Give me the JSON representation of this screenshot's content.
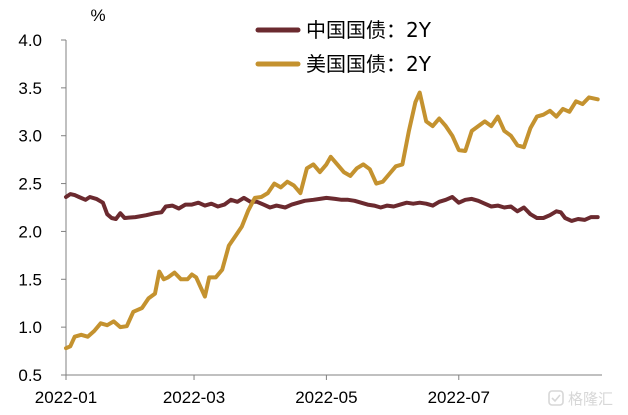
{
  "watermark_text": "格隆汇",
  "colors": {
    "china": "#6B2A2F",
    "us": "#C4922F",
    "axis": "#808080"
  },
  "chart_data": {
    "type": "line",
    "title": "",
    "xlabel": "",
    "ylabel": "",
    "y_unit": "%",
    "ylim": [
      0.5,
      4.0
    ],
    "yticks": [
      "4.0",
      "3.5",
      "3.0",
      "2.5",
      "2.0",
      "1.5",
      "1.0",
      "0.5"
    ],
    "x_range": [
      "2022-01-01",
      "2022-09-05"
    ],
    "xticks": [
      {
        "label": "2022-01",
        "date": "2022-01-01"
      },
      {
        "label": "2022-03",
        "date": "2022-03-01"
      },
      {
        "label": "2022-05",
        "date": "2022-05-01"
      },
      {
        "label": "2022-07",
        "date": "2022-07-01"
      }
    ],
    "grid": false,
    "legend_position": "top-center",
    "series": [
      {
        "name": "中国国债：2Y",
        "color": "#6B2A2F",
        "points": [
          [
            "2022-01-01",
            2.36
          ],
          [
            "2022-01-03",
            2.39
          ],
          [
            "2022-01-05",
            2.38
          ],
          [
            "2022-01-07",
            2.36
          ],
          [
            "2022-01-10",
            2.33
          ],
          [
            "2022-01-12",
            2.36
          ],
          [
            "2022-01-15",
            2.34
          ],
          [
            "2022-01-18",
            2.3
          ],
          [
            "2022-01-20",
            2.18
          ],
          [
            "2022-01-22",
            2.14
          ],
          [
            "2022-01-24",
            2.13
          ],
          [
            "2022-01-26",
            2.19
          ],
          [
            "2022-01-28",
            2.14
          ],
          [
            "2022-02-02",
            2.15
          ],
          [
            "2022-02-07",
            2.17
          ],
          [
            "2022-02-11",
            2.19
          ],
          [
            "2022-02-14",
            2.2
          ],
          [
            "2022-02-16",
            2.26
          ],
          [
            "2022-02-19",
            2.27
          ],
          [
            "2022-02-22",
            2.24
          ],
          [
            "2022-02-25",
            2.28
          ],
          [
            "2022-02-28",
            2.28
          ],
          [
            "2022-03-03",
            2.3
          ],
          [
            "2022-03-06",
            2.27
          ],
          [
            "2022-03-09",
            2.29
          ],
          [
            "2022-03-12",
            2.26
          ],
          [
            "2022-03-15",
            2.28
          ],
          [
            "2022-03-18",
            2.33
          ],
          [
            "2022-03-21",
            2.31
          ],
          [
            "2022-03-24",
            2.35
          ],
          [
            "2022-03-27",
            2.31
          ],
          [
            "2022-03-30",
            2.31
          ],
          [
            "2022-04-02",
            2.28
          ],
          [
            "2022-04-05",
            2.25
          ],
          [
            "2022-04-08",
            2.27
          ],
          [
            "2022-04-12",
            2.25
          ],
          [
            "2022-04-15",
            2.28
          ],
          [
            "2022-04-18",
            2.3
          ],
          [
            "2022-04-21",
            2.32
          ],
          [
            "2022-04-25",
            2.33
          ],
          [
            "2022-04-28",
            2.34
          ],
          [
            "2022-05-01",
            2.35
          ],
          [
            "2022-05-05",
            2.34
          ],
          [
            "2022-05-08",
            2.33
          ],
          [
            "2022-05-11",
            2.33
          ],
          [
            "2022-05-14",
            2.32
          ],
          [
            "2022-05-17",
            2.3
          ],
          [
            "2022-05-20",
            2.28
          ],
          [
            "2022-05-23",
            2.27
          ],
          [
            "2022-05-26",
            2.25
          ],
          [
            "2022-05-29",
            2.27
          ],
          [
            "2022-06-01",
            2.26
          ],
          [
            "2022-06-04",
            2.28
          ],
          [
            "2022-06-07",
            2.3
          ],
          [
            "2022-06-10",
            2.29
          ],
          [
            "2022-06-13",
            2.3
          ],
          [
            "2022-06-16",
            2.29
          ],
          [
            "2022-06-19",
            2.27
          ],
          [
            "2022-06-22",
            2.31
          ],
          [
            "2022-06-25",
            2.33
          ],
          [
            "2022-06-28",
            2.36
          ],
          [
            "2022-07-01",
            2.3
          ],
          [
            "2022-07-04",
            2.33
          ],
          [
            "2022-07-07",
            2.34
          ],
          [
            "2022-07-10",
            2.32
          ],
          [
            "2022-07-13",
            2.29
          ],
          [
            "2022-07-16",
            2.26
          ],
          [
            "2022-07-19",
            2.27
          ],
          [
            "2022-07-22",
            2.25
          ],
          [
            "2022-07-25",
            2.26
          ],
          [
            "2022-07-28",
            2.21
          ],
          [
            "2022-07-31",
            2.25
          ],
          [
            "2022-08-03",
            2.18
          ],
          [
            "2022-08-06",
            2.14
          ],
          [
            "2022-08-09",
            2.14
          ],
          [
            "2022-08-12",
            2.17
          ],
          [
            "2022-08-15",
            2.21
          ],
          [
            "2022-08-17",
            2.2
          ],
          [
            "2022-08-19",
            2.14
          ],
          [
            "2022-08-22",
            2.11
          ],
          [
            "2022-08-25",
            2.13
          ],
          [
            "2022-08-28",
            2.12
          ],
          [
            "2022-08-31",
            2.15
          ],
          [
            "2022-09-03",
            2.15
          ]
        ]
      },
      {
        "name": "美国国债：2Y",
        "color": "#C4922F",
        "points": [
          [
            "2022-01-01",
            0.78
          ],
          [
            "2022-01-03",
            0.8
          ],
          [
            "2022-01-05",
            0.9
          ],
          [
            "2022-01-08",
            0.92
          ],
          [
            "2022-01-11",
            0.9
          ],
          [
            "2022-01-14",
            0.96
          ],
          [
            "2022-01-17",
            1.04
          ],
          [
            "2022-01-20",
            1.02
          ],
          [
            "2022-01-23",
            1.06
          ],
          [
            "2022-01-26",
            1.0
          ],
          [
            "2022-01-29",
            1.01
          ],
          [
            "2022-02-01",
            1.16
          ],
          [
            "2022-02-03",
            1.18
          ],
          [
            "2022-02-05",
            1.2
          ],
          [
            "2022-02-08",
            1.3
          ],
          [
            "2022-02-11",
            1.35
          ],
          [
            "2022-02-13",
            1.58
          ],
          [
            "2022-02-15",
            1.5
          ],
          [
            "2022-02-17",
            1.52
          ],
          [
            "2022-02-20",
            1.57
          ],
          [
            "2022-02-23",
            1.5
          ],
          [
            "2022-02-26",
            1.5
          ],
          [
            "2022-02-28",
            1.55
          ],
          [
            "2022-03-02",
            1.52
          ],
          [
            "2022-03-04",
            1.42
          ],
          [
            "2022-03-06",
            1.32
          ],
          [
            "2022-03-08",
            1.52
          ],
          [
            "2022-03-11",
            1.52
          ],
          [
            "2022-03-14",
            1.6
          ],
          [
            "2022-03-17",
            1.85
          ],
          [
            "2022-03-20",
            1.95
          ],
          [
            "2022-03-23",
            2.05
          ],
          [
            "2022-03-26",
            2.22
          ],
          [
            "2022-03-29",
            2.35
          ],
          [
            "2022-04-01",
            2.36
          ],
          [
            "2022-04-04",
            2.4
          ],
          [
            "2022-04-07",
            2.5
          ],
          [
            "2022-04-10",
            2.46
          ],
          [
            "2022-04-13",
            2.52
          ],
          [
            "2022-04-16",
            2.48
          ],
          [
            "2022-04-19",
            2.4
          ],
          [
            "2022-04-22",
            2.66
          ],
          [
            "2022-04-25",
            2.7
          ],
          [
            "2022-04-28",
            2.62
          ],
          [
            "2022-05-01",
            2.7
          ],
          [
            "2022-05-03",
            2.78
          ],
          [
            "2022-05-06",
            2.7
          ],
          [
            "2022-05-09",
            2.62
          ],
          [
            "2022-05-12",
            2.58
          ],
          [
            "2022-05-15",
            2.66
          ],
          [
            "2022-05-18",
            2.7
          ],
          [
            "2022-05-21",
            2.65
          ],
          [
            "2022-05-24",
            2.5
          ],
          [
            "2022-05-27",
            2.52
          ],
          [
            "2022-05-30",
            2.6
          ],
          [
            "2022-06-02",
            2.68
          ],
          [
            "2022-06-05",
            2.7
          ],
          [
            "2022-06-08",
            3.05
          ],
          [
            "2022-06-11",
            3.35
          ],
          [
            "2022-06-13",
            3.45
          ],
          [
            "2022-06-16",
            3.15
          ],
          [
            "2022-06-19",
            3.1
          ],
          [
            "2022-06-22",
            3.18
          ],
          [
            "2022-06-25",
            3.1
          ],
          [
            "2022-06-28",
            3.0
          ],
          [
            "2022-07-01",
            2.85
          ],
          [
            "2022-07-04",
            2.84
          ],
          [
            "2022-07-07",
            3.05
          ],
          [
            "2022-07-10",
            3.1
          ],
          [
            "2022-07-13",
            3.15
          ],
          [
            "2022-07-16",
            3.1
          ],
          [
            "2022-07-19",
            3.2
          ],
          [
            "2022-07-22",
            3.05
          ],
          [
            "2022-07-25",
            3.0
          ],
          [
            "2022-07-28",
            2.9
          ],
          [
            "2022-07-31",
            2.88
          ],
          [
            "2022-08-03",
            3.08
          ],
          [
            "2022-08-06",
            3.2
          ],
          [
            "2022-08-09",
            3.22
          ],
          [
            "2022-08-12",
            3.26
          ],
          [
            "2022-08-15",
            3.2
          ],
          [
            "2022-08-18",
            3.28
          ],
          [
            "2022-08-21",
            3.25
          ],
          [
            "2022-08-24",
            3.36
          ],
          [
            "2022-08-27",
            3.33
          ],
          [
            "2022-08-30",
            3.4
          ],
          [
            "2022-09-03",
            3.38
          ]
        ]
      }
    ]
  }
}
